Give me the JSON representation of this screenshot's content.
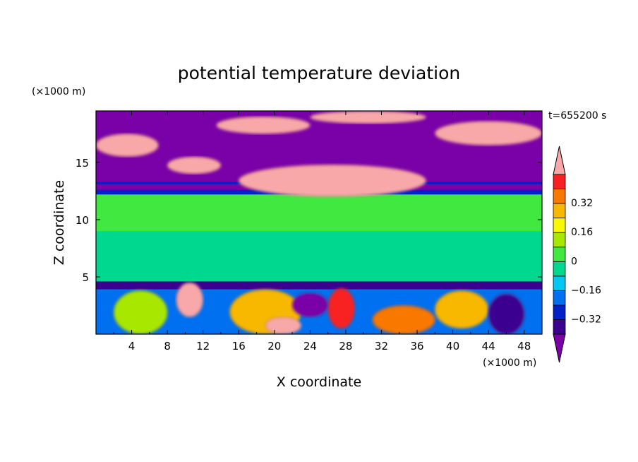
{
  "chart_data": {
    "type": "heatmap",
    "title": "potential temperature deviation",
    "xlabel": "X coordinate",
    "ylabel": "Z coordinate",
    "x_unit": "(×1000 m)",
    "y_unit": "(×1000 m)",
    "time_label": "t=655200 s",
    "xlim": [
      0,
      50
    ],
    "ylim": [
      0,
      19.5
    ],
    "x_ticks": [
      4,
      8,
      12,
      16,
      20,
      24,
      28,
      32,
      36,
      40,
      44,
      48
    ],
    "y_ticks": [
      5,
      10,
      15
    ],
    "grid": false,
    "colorbar": {
      "levels": [
        -0.48,
        -0.4,
        -0.32,
        -0.24,
        -0.16,
        -0.08,
        0,
        0.08,
        0.16,
        0.24,
        0.32,
        0.4,
        0.48
      ],
      "tick_labels": [
        "0.32",
        "0.16",
        "0",
        "−0.16",
        "−0.32"
      ],
      "tick_values": [
        0.32,
        0.16,
        0,
        -0.16,
        -0.32
      ],
      "colors": [
        "#7a00a8",
        "#3a0090",
        "#0020c8",
        "#0070f0",
        "#00c8f0",
        "#00d890",
        "#40e840",
        "#a8e800",
        "#f8f800",
        "#f8b800",
        "#f87800",
        "#f82020",
        "#f8a8a8"
      ],
      "extend": "both"
    },
    "regions": [
      {
        "x": [
          0,
          50
        ],
        "z": [
          0,
          19.5
        ],
        "value": 0.04
      },
      {
        "x": [
          0,
          50
        ],
        "z": [
          10.2,
          12.4
        ],
        "value": 0.02
      },
      {
        "x": [
          0,
          50
        ],
        "z": [
          4.6,
          9.0
        ],
        "value": -0.04
      },
      {
        "x": [
          0,
          50
        ],
        "z": [
          12.2,
          13.4
        ],
        "value": -0.25
      },
      {
        "x": [
          0,
          50
        ],
        "z": [
          12.6,
          13.1
        ],
        "value": -0.42
      },
      {
        "x": [
          0,
          50
        ],
        "z": [
          13.3,
          19.5
        ],
        "value": -0.46
      },
      {
        "x": [
          0,
          50
        ],
        "z": [
          3.9,
          4.6
        ],
        "value": -0.4
      },
      {
        "x": [
          0,
          50
        ],
        "z": [
          0,
          3.9
        ],
        "value": -0.2
      },
      {
        "x": [
          0,
          7
        ],
        "z": [
          15.5,
          17.5
        ],
        "value": 0.48
      },
      {
        "x": [
          8,
          14
        ],
        "z": [
          14.0,
          15.5
        ],
        "value": 0.48
      },
      {
        "x": [
          16,
          37
        ],
        "z": [
          12.0,
          14.8
        ],
        "value": 0.48
      },
      {
        "x": [
          13.5,
          24
        ],
        "z": [
          17.5,
          19.0
        ],
        "value": 0.48
      },
      {
        "x": [
          38,
          50
        ],
        "z": [
          16.5,
          18.6
        ],
        "value": 0.48
      },
      {
        "x": [
          24,
          37
        ],
        "z": [
          18.4,
          19.5
        ],
        "value": 0.48
      },
      {
        "x": [
          2,
          8
        ],
        "z": [
          0,
          3.8
        ],
        "value": 0.1
      },
      {
        "x": [
          9,
          12
        ],
        "z": [
          1.5,
          4.5
        ],
        "value": 0.48
      },
      {
        "x": [
          15,
          23
        ],
        "z": [
          0,
          3.9
        ],
        "value": 0.28
      },
      {
        "x": [
          19,
          23
        ],
        "z": [
          0,
          1.5
        ],
        "value": 0.48
      },
      {
        "x": [
          26,
          29
        ],
        "z": [
          0.5,
          4.0
        ],
        "value": 0.4
      },
      {
        "x": [
          31,
          38
        ],
        "z": [
          0,
          2.5
        ],
        "value": 0.32
      },
      {
        "x": [
          38,
          44
        ],
        "z": [
          0.5,
          3.8
        ],
        "value": 0.24
      },
      {
        "x": [
          22,
          26
        ],
        "z": [
          1.5,
          3.6
        ],
        "value": -0.45
      },
      {
        "x": [
          44,
          48
        ],
        "z": [
          0,
          3.5
        ],
        "value": -0.35
      }
    ]
  }
}
